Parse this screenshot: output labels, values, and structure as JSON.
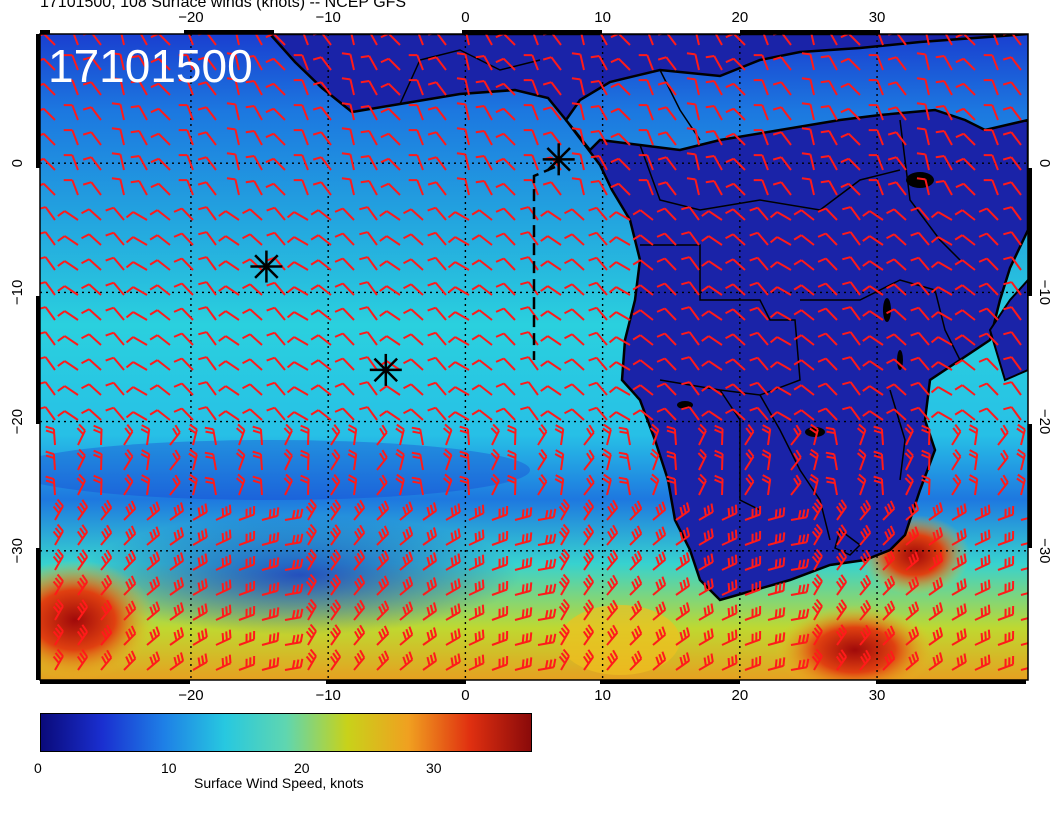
{
  "title": "17101500, 108 Surface winds (knots) -- NCEP GFS",
  "stamp": "17101500",
  "map": {
    "lon_range": [
      -31,
      41
    ],
    "lat_range": [
      -40,
      10
    ],
    "lon_ticks": [
      "−20",
      "−10",
      "0",
      "10",
      "20",
      "30"
    ],
    "lat_ticks": [
      "0",
      "−10",
      "−20",
      "−30"
    ],
    "grid": "dotted",
    "barb_color": "#ff1a1a",
    "coast_color": "#000000",
    "markers": [
      {
        "lon": -14.5,
        "lat": -8.0
      },
      {
        "lon": -5.8,
        "lat": -16.0
      },
      {
        "lon": 6.8,
        "lat": 0.3
      }
    ]
  },
  "colorbar": {
    "title": "Surface Wind Speed, knots",
    "ticks": [
      "0",
      "10",
      "20",
      "30"
    ],
    "range": [
      0,
      37
    ],
    "colors": [
      "#0a0a7a",
      "#1a2fd0",
      "#1e7fe6",
      "#27c8e0",
      "#5fd6b0",
      "#c8d21a",
      "#f0a020",
      "#e03010",
      "#8a0a0a"
    ]
  }
}
